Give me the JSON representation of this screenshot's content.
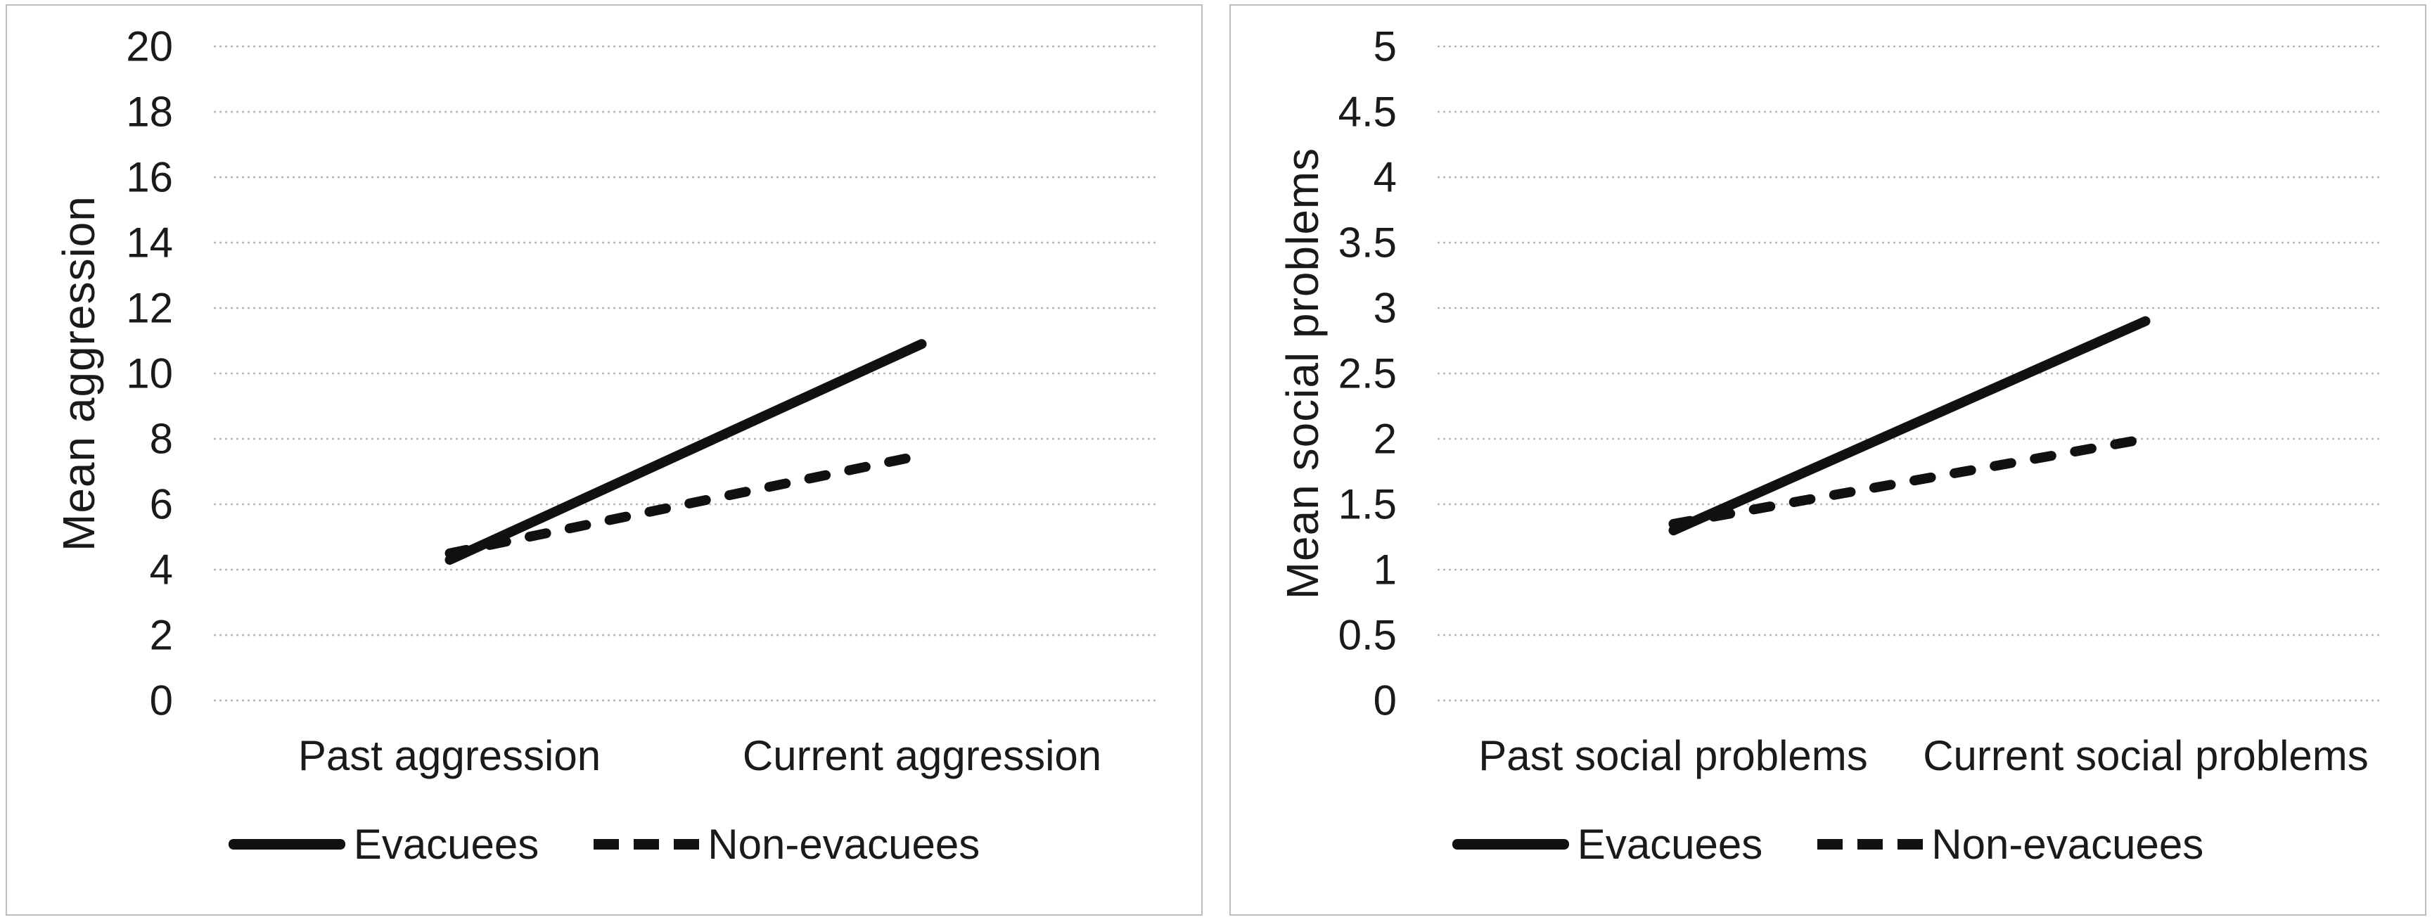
{
  "figure": {
    "colors": {
      "line": "#111111",
      "gridline": "#b8b8b8",
      "panel_border": "#bdbdbd",
      "text": "#1a1a1a",
      "background": "#ffffff"
    }
  },
  "chart_data": [
    {
      "type": "line",
      "ylabel": "Mean aggression",
      "xlabel": "",
      "title": "",
      "ylim": [
        0,
        20
      ],
      "ystep": 2,
      "yticks": [
        "20",
        "18",
        "16",
        "14",
        "12",
        "10",
        "8",
        "6",
        "4",
        "2",
        "0"
      ],
      "grid": "horizontal-dotted",
      "legend_position": "bottom",
      "categories": [
        "Past aggression",
        "Current aggression"
      ],
      "series": [
        {
          "name": "Evacuees",
          "style": "solid",
          "values": [
            4.3,
            10.9
          ]
        },
        {
          "name": "Non-evacuees",
          "style": "dashed",
          "values": [
            4.5,
            7.5
          ]
        }
      ]
    },
    {
      "type": "line",
      "ylabel": "Mean social problems",
      "xlabel": "",
      "title": "",
      "ylim": [
        0,
        5
      ],
      "ystep": 0.5,
      "yticks": [
        "5",
        "4.5",
        "4",
        "3.5",
        "3",
        "2.5",
        "2",
        "1.5",
        "1",
        "0.5",
        "0"
      ],
      "grid": "horizontal-dotted",
      "legend_position": "bottom",
      "categories": [
        "Past social problems",
        "Current social problems"
      ],
      "series": [
        {
          "name": "Evacuees",
          "style": "solid",
          "values": [
            1.3,
            2.9
          ]
        },
        {
          "name": "Non-evacuees",
          "style": "dashed",
          "values": [
            1.35,
            2.0
          ]
        }
      ]
    }
  ]
}
